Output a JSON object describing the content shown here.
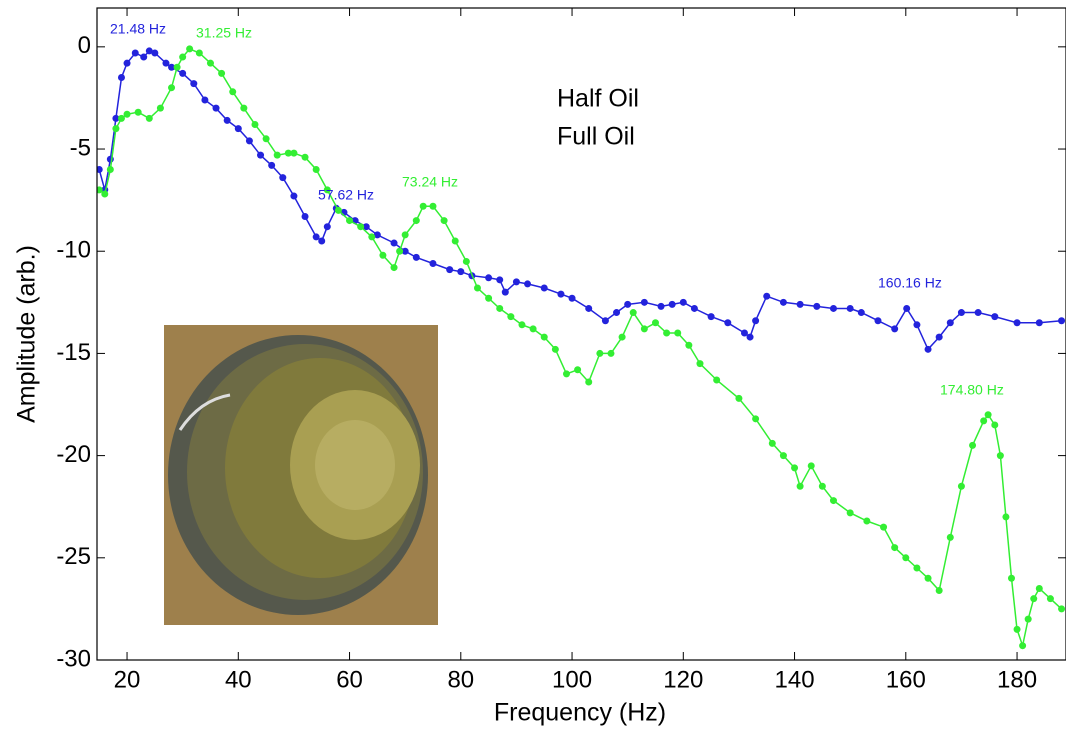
{
  "chart_data": {
    "type": "line",
    "xlabel": "Frequency (Hz)",
    "ylabel": "Amplitude (arb.)",
    "xlim": [
      14.6,
      188.8
    ],
    "ylim": [
      -30,
      1.9
    ],
    "xticks": [
      20,
      40,
      60,
      80,
      100,
      120,
      140,
      160,
      180
    ],
    "yticks": [
      0,
      -5,
      -10,
      -15,
      -20,
      -25,
      -30
    ],
    "series": [
      {
        "name": "Half Oil",
        "color": "#2323dc",
        "x": [
          15,
          16,
          17,
          18,
          19,
          20,
          21.48,
          23,
          24,
          25,
          27,
          28,
          30,
          32,
          34,
          36,
          38,
          40,
          42,
          44,
          46,
          48,
          50,
          52,
          54,
          55,
          56,
          57.62,
          59,
          61,
          63,
          65,
          68,
          70,
          72,
          75,
          78,
          80,
          82,
          85,
          87,
          88,
          90,
          92,
          95,
          98,
          100,
          103,
          106,
          108,
          110,
          113,
          116,
          118,
          120,
          122,
          125,
          128,
          131,
          132,
          133,
          135,
          138,
          141,
          144,
          147,
          150,
          152,
          155,
          158,
          160.16,
          162,
          164,
          166,
          168,
          170,
          173,
          176,
          180,
          184,
          188
        ],
        "values": [
          -6,
          -7,
          -5.5,
          -3.5,
          -1.5,
          -0.8,
          -0.3,
          -0.5,
          -0.2,
          -0.3,
          -0.8,
          -1,
          -1.3,
          -1.8,
          -2.6,
          -3,
          -3.6,
          -4,
          -4.6,
          -5.3,
          -5.8,
          -6.4,
          -7.3,
          -8.3,
          -9.3,
          -9.5,
          -8.8,
          -7.9,
          -8.1,
          -8.5,
          -8.8,
          -9.2,
          -9.6,
          -10,
          -10.3,
          -10.6,
          -10.9,
          -11,
          -11.2,
          -11.3,
          -11.4,
          -12,
          -11.5,
          -11.6,
          -11.8,
          -12.1,
          -12.3,
          -12.8,
          -13.4,
          -13,
          -12.6,
          -12.5,
          -12.7,
          -12.6,
          -12.5,
          -12.8,
          -13.2,
          -13.5,
          -14,
          -14.2,
          -13.4,
          -12.2,
          -12.5,
          -12.6,
          -12.7,
          -12.8,
          -12.8,
          -13,
          -13.4,
          -13.8,
          -12.8,
          -13.6,
          -14.8,
          -14.2,
          -13.5,
          -13,
          -13,
          -13.2,
          -13.5,
          -13.5,
          -13.4
        ]
      },
      {
        "name": "Full Oil",
        "color": "#33ee33",
        "x": [
          15,
          16,
          17,
          18,
          19,
          20,
          22,
          24,
          26,
          28,
          29,
          30,
          31.25,
          33,
          35,
          37,
          39,
          41,
          43,
          45,
          47,
          49,
          50,
          52,
          54,
          56,
          58,
          60,
          62,
          64,
          66,
          68,
          69,
          70,
          72,
          73.24,
          75,
          77,
          79,
          81,
          83,
          85,
          87,
          89,
          91,
          93,
          95,
          97,
          99,
          101,
          103,
          105,
          107,
          109,
          111,
          113,
          115,
          117,
          119,
          121,
          123,
          126,
          130,
          133,
          136,
          138,
          140,
          141,
          143,
          145,
          147,
          150,
          153,
          156,
          158,
          160,
          162,
          164,
          166,
          168,
          170,
          172,
          174,
          174.8,
          176,
          177,
          178,
          179,
          180,
          181,
          182,
          183,
          184,
          186,
          188
        ],
        "values": [
          -7,
          -7.2,
          -6,
          -4,
          -3.5,
          -3.3,
          -3.2,
          -3.5,
          -3,
          -2,
          -1,
          -0.5,
          -0.1,
          -0.3,
          -0.8,
          -1.3,
          -2.2,
          -3,
          -3.8,
          -4.5,
          -5.3,
          -5.2,
          -5.2,
          -5.4,
          -6,
          -7,
          -8,
          -8.5,
          -8.8,
          -9.3,
          -10.2,
          -10.8,
          -10,
          -9.2,
          -8.5,
          -7.8,
          -7.8,
          -8.5,
          -9.5,
          -10.5,
          -11.8,
          -12.3,
          -12.8,
          -13.2,
          -13.6,
          -13.8,
          -14.2,
          -14.8,
          -16,
          -15.8,
          -16.4,
          -15,
          -15,
          -14.2,
          -13,
          -13.8,
          -13.5,
          -14,
          -14,
          -14.6,
          -15.5,
          -16.3,
          -17.2,
          -18.2,
          -19.4,
          -20,
          -20.6,
          -21.5,
          -20.5,
          -21.5,
          -22.2,
          -22.8,
          -23.2,
          -23.5,
          -24.5,
          -25,
          -25.5,
          -26,
          -26.6,
          -24,
          -21.5,
          -19.5,
          -18.3,
          -18,
          -18.5,
          -20,
          -23,
          -26,
          -28.5,
          -29.3,
          -28,
          -27,
          -26.5,
          -27,
          -27.5
        ]
      }
    ],
    "annotations": [
      {
        "text": "21.48 Hz",
        "series": 0
      },
      {
        "text": "31.25 Hz",
        "series": 1
      },
      {
        "text": "57.62 Hz",
        "series": 0
      },
      {
        "text": "73.24 Hz",
        "series": 1
      },
      {
        "text": "160.16 Hz",
        "series": 0
      },
      {
        "text": "174.80 Hz",
        "series": 1
      }
    ]
  }
}
